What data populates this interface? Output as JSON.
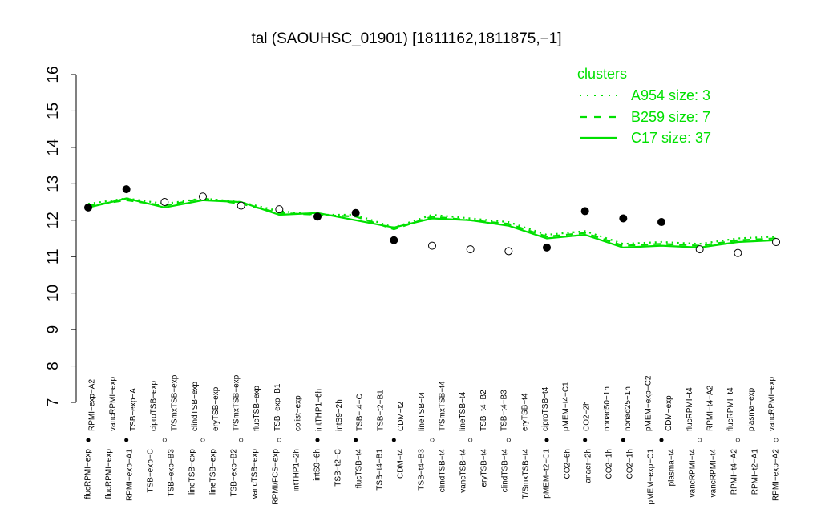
{
  "chart_data": {
    "type": "line",
    "title": "tal (SAOUHSC_01901) [1811162,1811875,−1]",
    "xlabel": "",
    "ylabel": "",
    "ylim": [
      7,
      16
    ],
    "yticks": [
      7,
      8,
      9,
      10,
      11,
      12,
      13,
      14,
      15,
      16
    ],
    "grid": false,
    "legend": {
      "title": "clusters",
      "placement": "top-right",
      "entries": [
        {
          "label": "A954 size: 3",
          "style": "dotted"
        },
        {
          "label": "B259 size: 7",
          "style": "dashed"
        },
        {
          "label": "C17 size: 37",
          "style": "solid"
        }
      ]
    },
    "colors": {
      "cluster_line": "#00e000",
      "point_fill_selected": "#000000",
      "point_fill_other": "#ffffff"
    },
    "labels_top": [
      "RPMI−exp−A2",
      "vancRPMI−exp",
      "TSB−exp−A",
      "ciproTSB−exp",
      "T/SmxTSB−exp",
      "clindTSB−exp",
      "eryTSB−exp",
      "T/SmxTSB−exp",
      "flucTSB−exp",
      "TSB−exp−B1",
      "colist−exp",
      "intTHP1−6h",
      "intS9−2h",
      "TSB−t4−C",
      "TSB−t2−B1",
      "CDM−t2",
      "lineTSB−t4",
      "T/SmxTSB−t4",
      "lineTSB−t4",
      "TSB−t4−B2",
      "TSB−t4−B3",
      "eryTSB−t4",
      "ciproTSB−t4",
      "pMEM−t4−C1",
      "CO2−2h",
      "nonad50−1h",
      "nonad25−1h",
      "pMEM−exp−C2",
      "CDM−exp",
      "flucRPMI−t4",
      "RPMI−t4−A2",
      "flucRPMI−t4",
      "plasma−exp",
      "vancRPMI−exp"
    ],
    "labels_bottom": [
      "flucRPMI−exp",
      "flucRPMI−exp",
      "RPMI−exp−A1",
      "TSB−exp−C",
      "TSB−exp−B3",
      "lineTSB−exp",
      "lineTSB−exp",
      "TSB−exp−B2",
      "vancTSB−exp",
      "RPMI/FCS−exp",
      "intTHP1−2h",
      "intS9−6h",
      "TSB−t2−C",
      "flucTSB−t4",
      "TSB−t4−B1",
      "CDM−t4",
      "TSB−t4−B3",
      "clindTSB−t4",
      "vancTSB−t4",
      "eryTSB−t4",
      "clindTSB−t4",
      "T/SmxTSB−t4",
      "pMEM−t2−C1",
      "CO2−6h",
      "anaer−2h",
      "CO2−1h",
      "CO2−1h",
      "pMEM−exp−C1",
      "plasma−t4",
      "vancRPMI−t4",
      "vancRPMI−t4",
      "RPMI−t4−A2",
      "RPMI−t2−A1",
      "RPMI−exp−A2"
    ],
    "series": [
      {
        "cluster": "C17",
        "style": "solid",
        "values": [
          12.35,
          12.6,
          12.35,
          12.55,
          12.5,
          12.15,
          12.2,
          12.0,
          11.8,
          12.05,
          12.0,
          11.85,
          11.5,
          11.6,
          11.25,
          11.3,
          11.25,
          11.4,
          11.45
        ]
      },
      {
        "cluster": "B259",
        "style": "dashed",
        "values": [
          12.4,
          12.55,
          12.4,
          12.6,
          12.45,
          12.2,
          12.15,
          12.1,
          11.75,
          12.1,
          12.0,
          11.9,
          11.55,
          11.65,
          11.3,
          11.35,
          11.3,
          11.45,
          11.5
        ]
      },
      {
        "cluster": "A954",
        "style": "dotted",
        "values": [
          12.45,
          12.6,
          12.45,
          12.6,
          12.5,
          12.25,
          12.15,
          12.15,
          11.8,
          12.15,
          12.05,
          11.95,
          11.6,
          11.7,
          11.35,
          11.4,
          11.35,
          11.5,
          11.55
        ]
      },
      {
        "cluster": "tal",
        "style": "points",
        "values": [
          12.35,
          12.85,
          12.5,
          12.65,
          12.4,
          12.3,
          12.1,
          12.2,
          11.45,
          11.3,
          11.2,
          11.15,
          11.25,
          12.25,
          12.05,
          11.95,
          11.2,
          11.1,
          11.4
        ],
        "selected": [
          true,
          true,
          false,
          false,
          false,
          false,
          true,
          true,
          true,
          false,
          false,
          false,
          true,
          true,
          true,
          true,
          false,
          false,
          false
        ]
      }
    ]
  }
}
